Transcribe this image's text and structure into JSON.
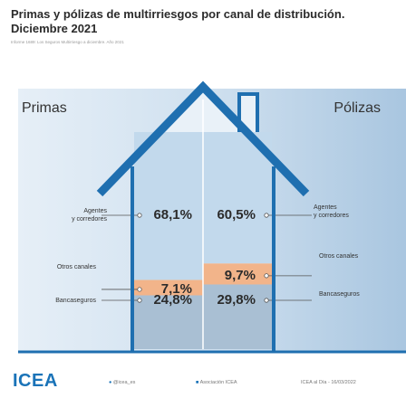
{
  "header": {
    "title_line1": "Primas y pólizas de multirriesgos por canal de distribución.",
    "title_line2": "Diciembre 2021",
    "source": "Informe 1689: Los Seguros Multirriesgo a diciembre. Año 2021"
  },
  "chart_data": {
    "type": "bar",
    "subtype": "stacked-100-percent",
    "categories": [
      "Primas",
      "Pólizas"
    ],
    "series": [
      {
        "name": "Bancaseguros",
        "values": [
          24.8,
          29.8
        ],
        "labels": [
          "24,8%",
          "29,8%"
        ]
      },
      {
        "name": "Otros canales",
        "values": [
          7.1,
          9.7
        ],
        "labels": [
          "7,1%",
          "9,7%"
        ]
      },
      {
        "name": "Agentes y corredores",
        "values": [
          68.1,
          60.5
        ],
        "labels": [
          "68,1%",
          "60,5%"
        ]
      }
    ],
    "left_labels": {
      "agentes": [
        "Agentes",
        "y corredores"
      ],
      "otros": "Otros canales",
      "banca": "Bancaseguros"
    },
    "right_labels": {
      "agentes": [
        "Agentes",
        "y corredores"
      ],
      "otros": "Otros canales",
      "banca": "Bancaseguros"
    },
    "ylim": [
      0,
      100
    ],
    "colors": {
      "Bancaseguros": "#a9bfd3",
      "Otros canales": "#f2b48a",
      "Agentes y corredores": "#c2d9ec",
      "house_outline": "#1f6fb0",
      "background_panel": "#b7d1e8"
    }
  },
  "footer": {
    "logo": "ICEA",
    "twitter": "@icea_es",
    "linkedin": "Asociación ICEA",
    "date_note": "ICEA al Día - 16/03/2022"
  }
}
